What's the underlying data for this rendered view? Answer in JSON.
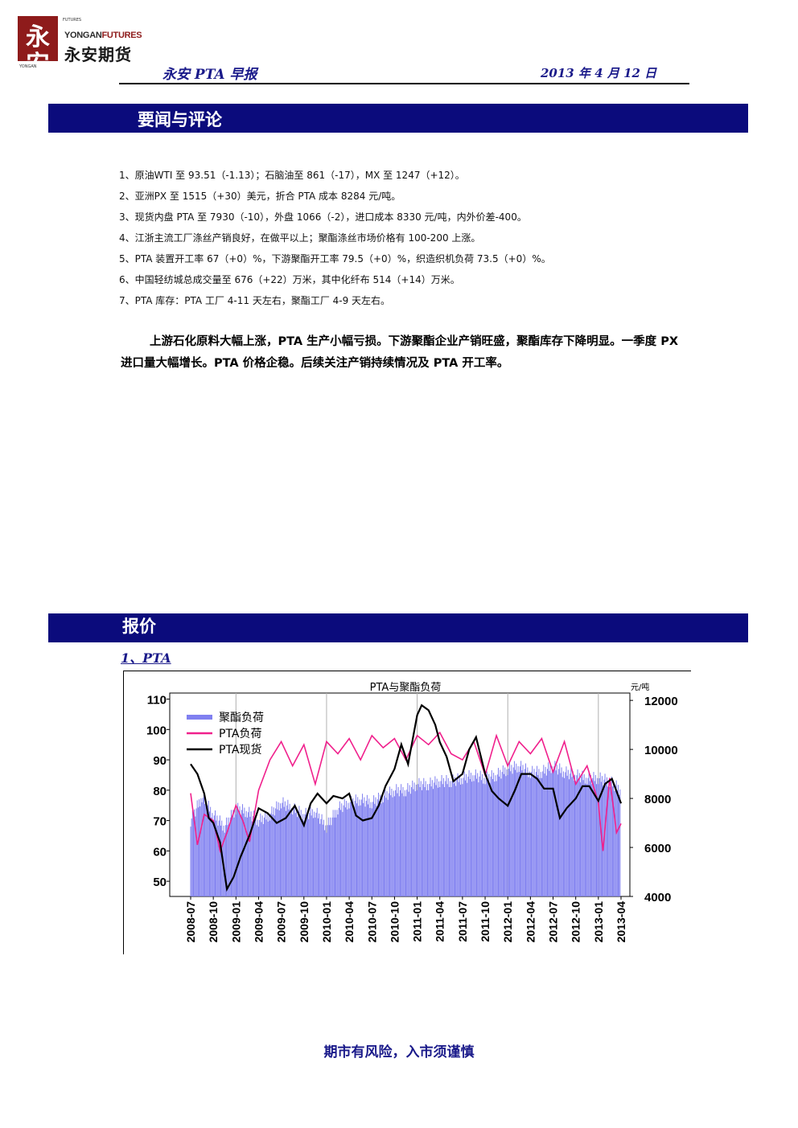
{
  "header": {
    "logo": {
      "mark_text": "永安",
      "small_text": "FUTURES",
      "en_prefix": "YONGAN",
      "en_suffix": "FUTURES",
      "cn_name": "永安期货",
      "bottom_text": "YONGAN"
    },
    "title": "永安 PTA 早报",
    "date": "2013 年 4 月 12 日"
  },
  "sections": {
    "news": {
      "title": "要闻与评论",
      "items": [
        "1、原油WTI 至 93.51（-1.13）；石脑油至 861（-17），MX 至 1247（+12）。",
        "2、亚洲PX 至 1515（+30）美元，折合 PTA 成本 8284 元/吨。",
        "3、现货内盘 PTA 至 7930（-10），外盘 1066（-2），进口成本 8330 元/吨，内外价差-400。",
        "4、江浙主流工厂涤丝产销良好，在做平以上；聚酯涤丝市场价格有 100-200 上涨。",
        "5、PTA 装置开工率 67（+0）%，下游聚酯开工率 79.5（+0）%，织造织机负荷 73.5（+0）%。",
        "6、中国轻纺城总成交量至 676（+22）万米，其中化纤布 514（+14）万米。",
        "7、PTA 库存：PTA 工厂 4-11 天左右，聚酯工厂 4-9 天左右。"
      ],
      "summary": "上游石化原料大幅上涨，PTA 生产小幅亏损。下游聚酯企业产销旺盛，聚酯库存下降明显。一季度 PX 进口量大幅增长。PTA 价格企稳。后续关注产销持续情况及 PTA 开工率。"
    },
    "quote": {
      "title": "报价",
      "sub_heading": "1、PTA"
    }
  },
  "chart_data": {
    "type": "line",
    "title": "PTA与聚酯负荷",
    "right_unit_label": "元/吨",
    "x_tick_labels": [
      "2008-07",
      "2008-10",
      "2009-01",
      "2009-04",
      "2009-07",
      "2009-10",
      "2010-01",
      "2010-04",
      "2010-07",
      "2010-10",
      "2011-01",
      "2011-04",
      "2011-07",
      "2011-10",
      "2012-01",
      "2012-04",
      "2012-07",
      "2012-10",
      "2013-01",
      "2013-04"
    ],
    "y_left": {
      "range": [
        45,
        112
      ],
      "ticks": [
        50,
        60,
        70,
        80,
        90,
        100,
        110
      ]
    },
    "y_right": {
      "range": [
        4000,
        12300
      ],
      "ticks": [
        4000,
        6000,
        8000,
        10000,
        12000
      ]
    },
    "grid_vertical_at": [
      "2009-01",
      "2010-01",
      "2011-01",
      "2012-01",
      "2013-01"
    ],
    "legend_placement": "top-left",
    "series": [
      {
        "name": "聚酯负荷",
        "style": "bars",
        "axis": "left",
        "color": "#8080f0",
        "t": [
          0,
          0.5,
          1,
          1.5,
          2,
          2.5,
          3,
          3.5,
          4,
          4.5,
          5,
          5.5,
          6,
          6.5,
          7,
          7.5,
          8,
          8.5,
          9,
          9.5,
          10,
          10.5,
          11,
          11.5,
          12,
          12.5,
          13,
          13.5,
          14,
          14.5,
          15,
          15.5,
          16,
          16.5,
          17,
          17.5,
          18,
          18.5,
          19
        ],
        "values": [
          70,
          78,
          72,
          68,
          74,
          73,
          70,
          72,
          76,
          74,
          72,
          73,
          68,
          74,
          76,
          77,
          76,
          78,
          80,
          80,
          82,
          82,
          83,
          83,
          84,
          85,
          84,
          85,
          87,
          88,
          86,
          86,
          88,
          86,
          85,
          84,
          84,
          83,
          80
        ]
      },
      {
        "name": "PTA负荷",
        "style": "line",
        "axis": "left",
        "color": "#f0208c",
        "t": [
          0,
          0.3,
          0.6,
          1,
          1.3,
          1.6,
          2,
          2.3,
          2.6,
          3,
          3.5,
          4,
          4.5,
          5,
          5.5,
          6,
          6.5,
          7,
          7.5,
          8,
          8.5,
          9,
          9.5,
          10,
          10.5,
          11,
          11.5,
          12,
          12.5,
          13,
          13.5,
          14,
          14.5,
          15,
          15.5,
          16,
          16.5,
          17,
          17.5,
          18,
          18.2,
          18.5,
          18.8,
          19
        ],
        "values": [
          79,
          62,
          72,
          70,
          60,
          66,
          75,
          70,
          63,
          80,
          90,
          96,
          88,
          95,
          82,
          96,
          92,
          97,
          90,
          98,
          94,
          97,
          90,
          98,
          95,
          99,
          92,
          90,
          96,
          85,
          98,
          88,
          96,
          92,
          97,
          86,
          96,
          82,
          88,
          76,
          60,
          84,
          66,
          69
        ]
      },
      {
        "name": "PTA现货",
        "style": "line",
        "axis": "right",
        "color": "#000000",
        "t": [
          0,
          0.3,
          0.6,
          0.8,
          1,
          1.3,
          1.6,
          1.9,
          2.2,
          2.6,
          3,
          3.4,
          3.8,
          4.2,
          4.6,
          5,
          5.3,
          5.6,
          6,
          6.3,
          6.7,
          7,
          7.3,
          7.6,
          8,
          8.3,
          8.6,
          9,
          9.3,
          9.6,
          10,
          10.2,
          10.5,
          10.8,
          11,
          11.3,
          11.6,
          12,
          12.3,
          12.6,
          13,
          13.3,
          13.6,
          14,
          14.3,
          14.6,
          15,
          15.3,
          15.6,
          16,
          16.3,
          16.6,
          17,
          17.3,
          17.6,
          18,
          18.3,
          18.6,
          19
        ],
        "values": [
          9400,
          9000,
          8200,
          7200,
          7000,
          6200,
          4300,
          4800,
          5600,
          6500,
          7600,
          7400,
          7000,
          7200,
          7700,
          6900,
          7800,
          8200,
          7800,
          8100,
          8000,
          8200,
          7300,
          7100,
          7200,
          7700,
          8500,
          9200,
          10200,
          9400,
          11400,
          11800,
          11600,
          11000,
          10300,
          9700,
          8700,
          9000,
          10000,
          10500,
          9000,
          8300,
          8000,
          7700,
          8300,
          9000,
          9000,
          8800,
          8400,
          8400,
          7200,
          7600,
          8000,
          8500,
          8500,
          7900,
          8600,
          8800,
          7800
        ]
      }
    ]
  },
  "footer": {
    "note": "期市有风险，入市须谨慎"
  }
}
